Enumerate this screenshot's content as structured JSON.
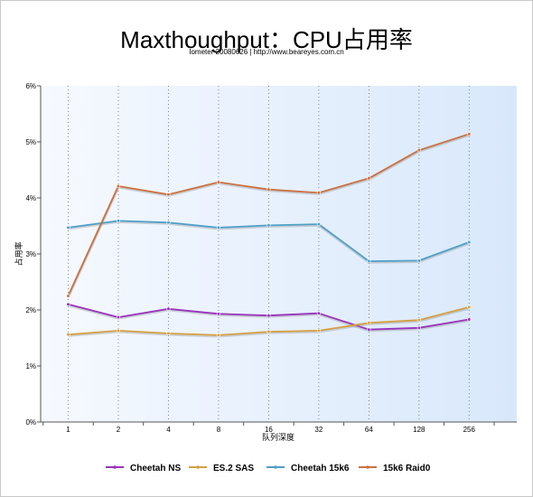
{
  "chart_data": {
    "type": "line",
    "title": "Maxthoughput：CPU占用率",
    "subtitle": "Iometer 20080626 | http://www.beareyes.com.cn",
    "xlabel": "队列深度",
    "ylabel": "占用率",
    "categories": [
      "1",
      "2",
      "4",
      "8",
      "16",
      "32",
      "64",
      "128",
      "256"
    ],
    "ylim": [
      0,
      6
    ],
    "yticks": [
      "0%",
      "1%",
      "2%",
      "3%",
      "4%",
      "5%",
      "6%"
    ],
    "grid": "vertical dotted",
    "legend": "bottom",
    "series": [
      {
        "name": "Cheetah NS",
        "color": "#9933bb",
        "values": [
          2.1,
          1.87,
          2.02,
          1.93,
          1.9,
          1.94,
          1.65,
          1.68,
          1.83
        ]
      },
      {
        "name": "ES.2 SAS",
        "color": "#d4a040",
        "values": [
          1.56,
          1.63,
          1.58,
          1.55,
          1.61,
          1.63,
          1.77,
          1.82,
          2.05
        ]
      },
      {
        "name": "Cheetah 15k6",
        "color": "#4fa0c8",
        "values": [
          3.47,
          3.59,
          3.56,
          3.47,
          3.51,
          3.53,
          2.87,
          2.88,
          3.21
        ]
      },
      {
        "name": "15k6 Raid0",
        "color": "#cc7040",
        "values": [
          2.25,
          4.21,
          4.06,
          4.28,
          4.15,
          4.09,
          4.35,
          4.85,
          5.14
        ]
      }
    ]
  }
}
